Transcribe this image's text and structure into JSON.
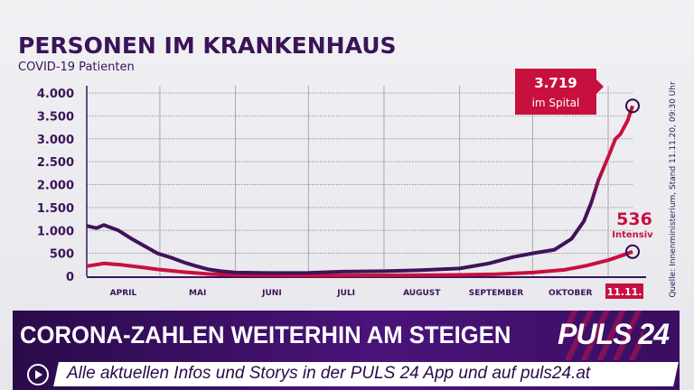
{
  "chart_data": {
    "type": "line",
    "title": "PERSONEN IM KRANKENHAUS",
    "subtitle": "COVID-19 Patienten",
    "xlabel": "",
    "ylabel": "",
    "ylim": [
      0,
      4000
    ],
    "yticks": [
      0,
      500,
      1000,
      1500,
      2000,
      2500,
      3000,
      3500,
      4000
    ],
    "ytick_labels": [
      "0",
      "500",
      "1.000",
      "1.500",
      "2.000",
      "2.500",
      "3.000",
      "3.500",
      "4.000"
    ],
    "x_unit": "days since 1 April 2020",
    "xlim": [
      0,
      224
    ],
    "month_labels": [
      {
        "label": "APRIL",
        "start": 0,
        "end": 30
      },
      {
        "label": "MAI",
        "start": 30,
        "end": 61
      },
      {
        "label": "JUNI",
        "start": 61,
        "end": 91
      },
      {
        "label": "JULI",
        "start": 91,
        "end": 122
      },
      {
        "label": "AUGUST",
        "start": 122,
        "end": 153
      },
      {
        "label": "SEPTEMBER",
        "start": 153,
        "end": 183
      },
      {
        "label": "OKTOBER",
        "start": 183,
        "end": 214
      }
    ],
    "end_label": "11.11.",
    "grid": true,
    "series": [
      {
        "name": "im Spital",
        "color": "#3d1459",
        "end_color": "#c8103f",
        "x": [
          0,
          4,
          7,
          10,
          13,
          19,
          25,
          29,
          35,
          40,
          45,
          50,
          55,
          61,
          75,
          91,
          105,
          122,
          136,
          153,
          165,
          175,
          183,
          192,
          199,
          204,
          207,
          210,
          214,
          217,
          219,
          222,
          224
        ],
        "y": [
          1100,
          1050,
          1120,
          1060,
          1000,
          800,
          620,
          500,
          400,
          300,
          220,
          150,
          110,
          80,
          70,
          75,
          100,
          110,
          130,
          170,
          280,
          420,
          500,
          580,
          820,
          1200,
          1600,
          2100,
          2600,
          3000,
          3100,
          3400,
          3719
        ]
      },
      {
        "name": "Intensiv",
        "color": "#c8103f",
        "x": [
          0,
          7,
          14,
          22,
          29,
          40,
          50,
          61,
          91,
          122,
          153,
          168,
          183,
          196,
          205,
          214,
          220,
          224
        ],
        "y": [
          220,
          280,
          250,
          200,
          150,
          90,
          50,
          30,
          15,
          20,
          30,
          45,
          80,
          140,
          230,
          350,
          460,
          536
        ]
      }
    ],
    "annotations": [
      {
        "series": "im Spital",
        "value": "3.719",
        "label": "im Spital"
      },
      {
        "series": "Intensiv",
        "value": "536",
        "label": "Intensiv"
      }
    ]
  },
  "source": "Quelle: Innenministerium, Stand 11.11.20, 09:30 Uhr",
  "ticker": {
    "headline": "CORONA-ZAHLEN WEITERHIN AM STEIGEN",
    "logo": "PULS 24",
    "info": "Alle aktuellen Infos und Storys in der PULS 24 App und auf puls24.at"
  }
}
